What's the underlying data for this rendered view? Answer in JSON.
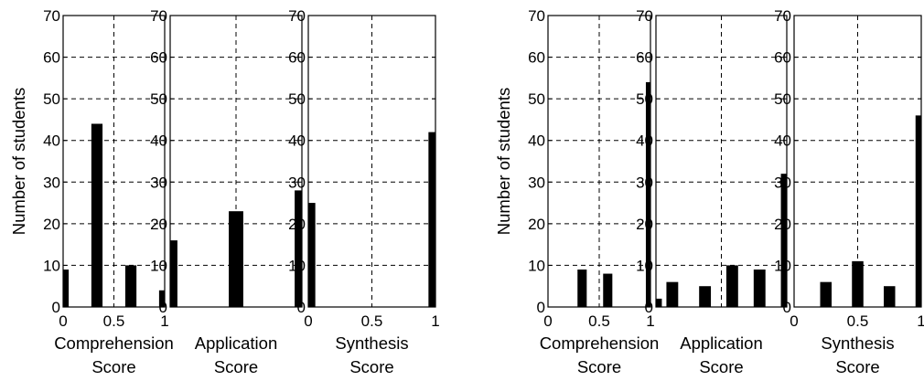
{
  "chart_data": [
    {
      "type": "bar",
      "panel": "left-group-1",
      "ylabel": "Number of students",
      "xlabel": [
        "Comprehension",
        "Score"
      ],
      "xlim": [
        0,
        1
      ],
      "ylim": [
        0,
        70
      ],
      "xticks": [
        "0",
        "0.5",
        "1"
      ],
      "yticks": [
        "0",
        "10",
        "20",
        "30",
        "40",
        "50",
        "60",
        "70"
      ],
      "grid": true,
      "bar_width": 0.11,
      "x": [
        0.0,
        0.333,
        0.667,
        1.0
      ],
      "values": [
        9,
        44,
        10,
        4
      ]
    },
    {
      "type": "bar",
      "panel": "left-group-2",
      "xlabel": [
        "Application",
        "Score"
      ],
      "xlim": [
        0,
        1
      ],
      "ylim": [
        0,
        70
      ],
      "xticks": [],
      "yticks": [
        "0",
        "10",
        "20",
        "30",
        "40",
        "50",
        "60",
        "70"
      ],
      "grid": true,
      "bar_width": 0.11,
      "x": [
        0.0,
        0.5,
        1.0
      ],
      "values": [
        16,
        23,
        28
      ]
    },
    {
      "type": "bar",
      "panel": "left-group-3",
      "xlabel": [
        "Synthesis",
        "Score"
      ],
      "xlim": [
        0,
        1
      ],
      "ylim": [
        0,
        70
      ],
      "xticks": [
        "0",
        "0.5",
        "1"
      ],
      "yticks": [
        "0",
        "10",
        "20",
        "30",
        "40",
        "50",
        "60",
        "70"
      ],
      "grid": true,
      "bar_width": 0.11,
      "x": [
        0.0,
        1.0
      ],
      "values": [
        25,
        42
      ]
    },
    {
      "type": "bar",
      "panel": "right-group-1",
      "ylabel": "Number of students",
      "xlabel": [
        "Comprehension",
        "Score"
      ],
      "xlim": [
        0,
        1
      ],
      "ylim": [
        0,
        70
      ],
      "xticks": [
        "0",
        "0.5",
        "1"
      ],
      "yticks": [
        "0",
        "10",
        "20",
        "30",
        "40",
        "50",
        "60",
        "70"
      ],
      "grid": true,
      "bar_width": 0.09,
      "x": [
        0.333,
        0.583,
        1.0
      ],
      "values": [
        9,
        8,
        54
      ]
    },
    {
      "type": "bar",
      "panel": "right-group-2",
      "xlabel": [
        "Application",
        "Score"
      ],
      "xlim": [
        0,
        1
      ],
      "ylim": [
        0,
        70
      ],
      "xticks": [],
      "yticks": [
        "0",
        "10",
        "20",
        "30",
        "40",
        "50",
        "60",
        "70"
      ],
      "grid": true,
      "bar_width": 0.09,
      "x": [
        0.0,
        0.125,
        0.375,
        0.583,
        0.792,
        1.0
      ],
      "values": [
        2,
        6,
        5,
        10,
        9,
        32
      ]
    },
    {
      "type": "bar",
      "panel": "right-group-3",
      "xlabel": [
        "Synthesis",
        "Score"
      ],
      "xlim": [
        0,
        1
      ],
      "ylim": [
        0,
        70
      ],
      "xticks": [
        "0",
        "0.5",
        "1"
      ],
      "yticks": [
        "0",
        "10",
        "20",
        "30",
        "40",
        "50",
        "60",
        "70"
      ],
      "grid": true,
      "bar_width": 0.09,
      "x": [
        0.25,
        0.5,
        0.75,
        1.0
      ],
      "values": [
        6,
        11,
        5,
        46
      ]
    }
  ]
}
